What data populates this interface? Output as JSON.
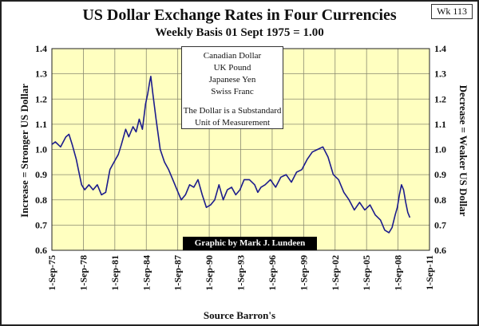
{
  "tag": "Wk 113",
  "source": "Source Barron's",
  "chart_data": {
    "type": "line",
    "title": "US Dollar Exchange Rates in Four Currencies",
    "subtitle": "Weekly Basis    01 Sept 1975 = 1.00",
    "ylabel_left": "Increase = Stronger US Dollar",
    "ylabel_right": "Decrease = Weaker US Dollar",
    "legend": [
      "Canadian Dollar",
      "UK Pound",
      "Japanese Yen",
      "Swiss Franc"
    ],
    "annotation": "The Dollar is a Substandard Unit of Measurement",
    "credit": "Graphic by Mark J. Lundeen",
    "ylim": [
      0.6,
      1.4
    ],
    "yticks": [
      "0.6",
      "0.7",
      "0.8",
      "0.9",
      "1.0",
      "1.1",
      "1.2",
      "1.3",
      "1.4"
    ],
    "xlim": [
      1975.67,
      2011.67
    ],
    "xticks": [
      "1-Sep-75",
      "1-Sep-78",
      "1-Sep-81",
      "1-Sep-84",
      "1-Sep-87",
      "1-Sep-90",
      "1-Sep-93",
      "1-Sep-96",
      "1-Sep-99",
      "1-Sep-02",
      "1-Sep-05",
      "1-Sep-08",
      "1-Sep-11"
    ],
    "grid": true,
    "series_color": "#1c1c8c",
    "plot_color": "#ffffc0",
    "x": [
      1975.67,
      1976.0,
      1976.5,
      1977.0,
      1977.3,
      1977.6,
      1978.0,
      1978.2,
      1978.5,
      1978.8,
      1979.2,
      1979.6,
      1980.0,
      1980.4,
      1980.8,
      1981.2,
      1981.6,
      1982.0,
      1982.3,
      1982.7,
      1983.0,
      1983.4,
      1983.7,
      1984.0,
      1984.3,
      1984.6,
      1984.8,
      1985.0,
      1985.1,
      1985.3,
      1985.6,
      1986.0,
      1986.4,
      1986.8,
      1987.2,
      1987.6,
      1988.0,
      1988.4,
      1988.8,
      1989.2,
      1989.6,
      1990.0,
      1990.4,
      1990.8,
      1991.2,
      1991.6,
      1992.0,
      1992.4,
      1992.8,
      1993.2,
      1993.6,
      1994.0,
      1994.5,
      1995.0,
      1995.3,
      1995.6,
      1996.0,
      1996.5,
      1997.0,
      1997.5,
      1998.0,
      1998.5,
      1999.0,
      1999.5,
      2000.0,
      2000.5,
      2001.0,
      2001.5,
      2002.0,
      2002.5,
      2003.0,
      2003.5,
      2004.0,
      2004.5,
      2005.0,
      2005.5,
      2006.0,
      2006.5,
      2007.0,
      2007.4,
      2007.8,
      2008.1,
      2008.4,
      2008.6,
      2008.8,
      2009.0,
      2009.2,
      2009.4,
      2009.6,
      2009.8
    ],
    "y": [
      1.02,
      1.03,
      1.01,
      1.05,
      1.06,
      1.02,
      0.96,
      0.92,
      0.86,
      0.84,
      0.86,
      0.84,
      0.86,
      0.82,
      0.83,
      0.92,
      0.95,
      0.98,
      1.02,
      1.08,
      1.05,
      1.09,
      1.07,
      1.12,
      1.08,
      1.18,
      1.22,
      1.27,
      1.29,
      1.22,
      1.12,
      1.0,
      0.95,
      0.92,
      0.88,
      0.84,
      0.8,
      0.82,
      0.86,
      0.85,
      0.88,
      0.82,
      0.77,
      0.78,
      0.8,
      0.86,
      0.8,
      0.84,
      0.85,
      0.82,
      0.84,
      0.88,
      0.88,
      0.86,
      0.83,
      0.85,
      0.86,
      0.88,
      0.85,
      0.89,
      0.9,
      0.87,
      0.91,
      0.92,
      0.96,
      0.99,
      1.0,
      1.01,
      0.97,
      0.9,
      0.88,
      0.83,
      0.8,
      0.76,
      0.79,
      0.76,
      0.78,
      0.74,
      0.72,
      0.68,
      0.67,
      0.69,
      0.74,
      0.77,
      0.82,
      0.86,
      0.84,
      0.79,
      0.75,
      0.73
    ]
  }
}
